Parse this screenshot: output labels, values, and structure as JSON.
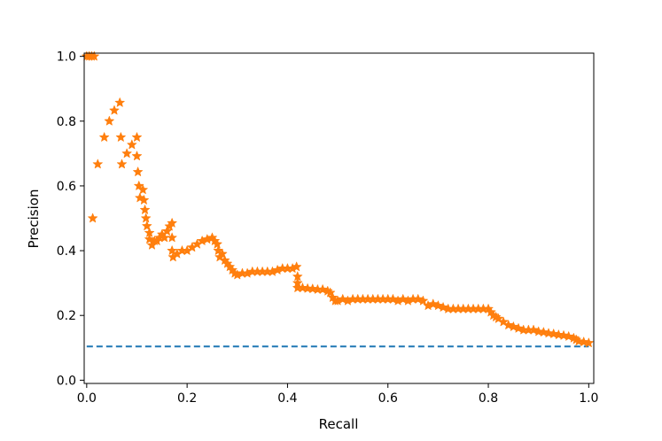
{
  "chart_data": {
    "type": "scatter",
    "title": "",
    "xlabel": "Recall",
    "ylabel": "Precision",
    "xlim": [
      -0.005,
      1.01
    ],
    "ylim": [
      -0.01,
      1.01
    ],
    "grid": false,
    "x_ticks": [
      "0.0",
      "0.2",
      "0.4",
      "0.6",
      "0.8",
      "1.0"
    ],
    "y_ticks": [
      "0.0",
      "0.2",
      "0.4",
      "0.6",
      "0.8",
      "1.0"
    ],
    "baseline": {
      "y": 0.104,
      "style": "dashed",
      "color": "#1f77b4"
    },
    "series": [
      {
        "marker": "star",
        "color": "#ff7f0e",
        "points": [
          [
            0.0,
            1.0
          ],
          [
            0.005,
            1.0
          ],
          [
            0.01,
            1.0
          ],
          [
            0.015,
            1.0
          ],
          [
            0.012,
            0.5
          ],
          [
            0.022,
            0.667
          ],
          [
            0.035,
            0.75
          ],
          [
            0.045,
            0.8
          ],
          [
            0.055,
            0.833
          ],
          [
            0.066,
            0.857
          ],
          [
            0.068,
            0.75
          ],
          [
            0.07,
            0.667
          ],
          [
            0.08,
            0.7
          ],
          [
            0.09,
            0.727
          ],
          [
            0.1,
            0.75
          ],
          [
            0.1,
            0.692
          ],
          [
            0.102,
            0.643
          ],
          [
            0.104,
            0.6
          ],
          [
            0.106,
            0.563
          ],
          [
            0.112,
            0.588
          ],
          [
            0.114,
            0.556
          ],
          [
            0.116,
            0.526
          ],
          [
            0.118,
            0.5
          ],
          [
            0.12,
            0.476
          ],
          [
            0.125,
            0.455
          ],
          [
            0.125,
            0.435
          ],
          [
            0.13,
            0.417
          ],
          [
            0.135,
            0.43
          ],
          [
            0.14,
            0.43
          ],
          [
            0.145,
            0.44
          ],
          [
            0.15,
            0.45
          ],
          [
            0.155,
            0.44
          ],
          [
            0.16,
            0.46
          ],
          [
            0.165,
            0.475
          ],
          [
            0.17,
            0.485
          ],
          [
            0.17,
            0.44
          ],
          [
            0.17,
            0.4
          ],
          [
            0.172,
            0.38
          ],
          [
            0.18,
            0.39
          ],
          [
            0.19,
            0.4
          ],
          [
            0.2,
            0.4
          ],
          [
            0.21,
            0.41
          ],
          [
            0.22,
            0.42
          ],
          [
            0.23,
            0.43
          ],
          [
            0.24,
            0.435
          ],
          [
            0.25,
            0.44
          ],
          [
            0.255,
            0.43
          ],
          [
            0.26,
            0.42
          ],
          [
            0.262,
            0.4
          ],
          [
            0.265,
            0.38
          ],
          [
            0.27,
            0.39
          ],
          [
            0.275,
            0.37
          ],
          [
            0.28,
            0.36
          ],
          [
            0.285,
            0.35
          ],
          [
            0.29,
            0.34
          ],
          [
            0.295,
            0.33
          ],
          [
            0.3,
            0.325
          ],
          [
            0.31,
            0.33
          ],
          [
            0.32,
            0.33
          ],
          [
            0.33,
            0.335
          ],
          [
            0.34,
            0.335
          ],
          [
            0.35,
            0.335
          ],
          [
            0.36,
            0.335
          ],
          [
            0.37,
            0.335
          ],
          [
            0.38,
            0.34
          ],
          [
            0.39,
            0.345
          ],
          [
            0.4,
            0.345
          ],
          [
            0.41,
            0.345
          ],
          [
            0.418,
            0.35
          ],
          [
            0.42,
            0.32
          ],
          [
            0.42,
            0.3
          ],
          [
            0.42,
            0.285
          ],
          [
            0.43,
            0.285
          ],
          [
            0.44,
            0.283
          ],
          [
            0.45,
            0.282
          ],
          [
            0.46,
            0.28
          ],
          [
            0.47,
            0.28
          ],
          [
            0.48,
            0.275
          ],
          [
            0.485,
            0.27
          ],
          [
            0.49,
            0.255
          ],
          [
            0.495,
            0.245
          ],
          [
            0.5,
            0.245
          ],
          [
            0.51,
            0.25
          ],
          [
            0.52,
            0.245
          ],
          [
            0.53,
            0.25
          ],
          [
            0.54,
            0.25
          ],
          [
            0.55,
            0.25
          ],
          [
            0.56,
            0.25
          ],
          [
            0.57,
            0.25
          ],
          [
            0.58,
            0.25
          ],
          [
            0.59,
            0.25
          ],
          [
            0.6,
            0.25
          ],
          [
            0.61,
            0.25
          ],
          [
            0.62,
            0.245
          ],
          [
            0.63,
            0.25
          ],
          [
            0.64,
            0.245
          ],
          [
            0.65,
            0.25
          ],
          [
            0.66,
            0.25
          ],
          [
            0.67,
            0.245
          ],
          [
            0.68,
            0.23
          ],
          [
            0.69,
            0.235
          ],
          [
            0.7,
            0.23
          ],
          [
            0.71,
            0.225
          ],
          [
            0.72,
            0.22
          ],
          [
            0.73,
            0.22
          ],
          [
            0.74,
            0.22
          ],
          [
            0.75,
            0.22
          ],
          [
            0.76,
            0.22
          ],
          [
            0.77,
            0.22
          ],
          [
            0.78,
            0.22
          ],
          [
            0.79,
            0.22
          ],
          [
            0.8,
            0.22
          ],
          [
            0.805,
            0.21
          ],
          [
            0.81,
            0.2
          ],
          [
            0.815,
            0.195
          ],
          [
            0.82,
            0.19
          ],
          [
            0.83,
            0.18
          ],
          [
            0.84,
            0.17
          ],
          [
            0.85,
            0.165
          ],
          [
            0.86,
            0.16
          ],
          [
            0.87,
            0.155
          ],
          [
            0.88,
            0.155
          ],
          [
            0.89,
            0.155
          ],
          [
            0.9,
            0.15
          ],
          [
            0.91,
            0.148
          ],
          [
            0.92,
            0.145
          ],
          [
            0.93,
            0.143
          ],
          [
            0.94,
            0.14
          ],
          [
            0.95,
            0.138
          ],
          [
            0.96,
            0.135
          ],
          [
            0.97,
            0.13
          ],
          [
            0.975,
            0.125
          ],
          [
            0.98,
            0.12
          ],
          [
            0.99,
            0.118
          ],
          [
            1.0,
            0.115
          ]
        ]
      }
    ]
  }
}
